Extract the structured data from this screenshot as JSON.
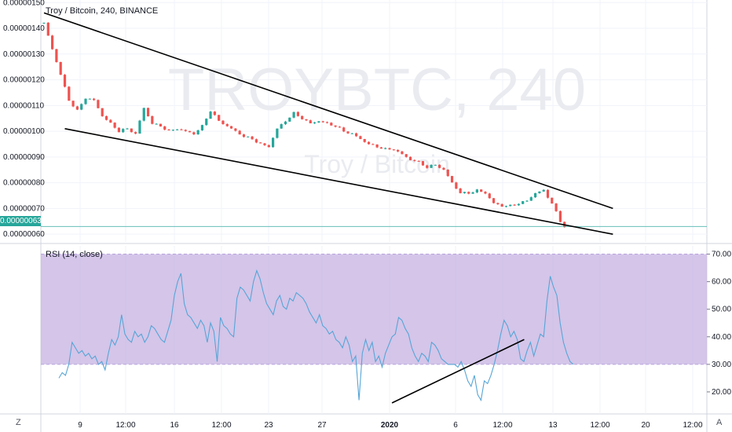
{
  "legend": {
    "main": "Troy / Bitcoin, 240, BINANCE",
    "rsi": "RSI (14, close)"
  },
  "watermark": {
    "symbol": "TROYBTC, 240",
    "name": "Troy / Bitcoin"
  },
  "buttons": {
    "z": "Z",
    "a": "A"
  },
  "colors": {
    "up": "#26a69a",
    "down": "#ef5350",
    "rsi_line": "#56a5d6",
    "rsi_band": "#c9b7e3",
    "last_price": "#26a69a",
    "trendline": "#000000"
  },
  "last_price": "0.00000063",
  "chart_data": [
    {
      "type": "candlestick",
      "title": "Troy / Bitcoin, 240, BINANCE",
      "y_ticks": [
        "0.00000150",
        "0.00000140",
        "0.00000130",
        "0.00000120",
        "0.00000110",
        "0.00000100",
        "0.00000090",
        "0.00000080",
        "0.00000070",
        "0.00000060"
      ],
      "ylim": [
        5.7e-07,
        1.51e-06
      ],
      "x_ticks": [
        "9",
        "12:00",
        "16",
        "12:00",
        "23",
        "27",
        "2020",
        "6",
        "12:00",
        "13",
        "12:00",
        "20",
        "12:00"
      ],
      "last_price": 6.3e-07,
      "trendlines": [
        {
          "name": "upper",
          "start": [
            0,
            1.46e-06
          ],
          "end": [
            114,
            7e-07
          ]
        },
        {
          "name": "lower",
          "start": [
            5,
            1.01e-06
          ],
          "end": [
            114,
            6e-07
          ]
        }
      ],
      "close_path": [
        [
          0,
          1.42e-06
        ],
        [
          2,
          1.32e-06
        ],
        [
          4,
          1.22e-06
        ],
        [
          6,
          1.12e-06
        ],
        [
          8,
          1.08e-06
        ],
        [
          10,
          1.13e-06
        ],
        [
          12,
          1.12e-06
        ],
        [
          14,
          1.06e-06
        ],
        [
          16,
          1.03e-06
        ],
        [
          18,
          1e-06
        ],
        [
          20,
          1.01e-06
        ],
        [
          22,
          9.9e-07
        ],
        [
          24,
          1.09e-06
        ],
        [
          26,
          1.03e-06
        ],
        [
          28,
          1.02e-06
        ],
        [
          30,
          1e-06
        ],
        [
          32,
          1.01e-06
        ],
        [
          34,
          1e-06
        ],
        [
          36,
          9.9e-07
        ],
        [
          38,
          1.02e-06
        ],
        [
          40,
          1.08e-06
        ],
        [
          42,
          1.04e-06
        ],
        [
          44,
          1.02e-06
        ],
        [
          46,
          1e-06
        ],
        [
          48,
          9.8e-07
        ],
        [
          50,
          9.7e-07
        ],
        [
          52,
          9.5e-07
        ],
        [
          54,
          9.4e-07
        ],
        [
          56,
          1.01e-06
        ],
        [
          58,
          1.04e-06
        ],
        [
          60,
          1.07e-06
        ],
        [
          62,
          1.05e-06
        ],
        [
          64,
          1.03e-06
        ],
        [
          66,
          1.04e-06
        ],
        [
          68,
          1.03e-06
        ],
        [
          70,
          1.02e-06
        ],
        [
          72,
          1e-06
        ],
        [
          74,
          9.9e-07
        ],
        [
          76,
          9.7e-07
        ],
        [
          78,
          9.5e-07
        ],
        [
          80,
          9.4e-07
        ],
        [
          82,
          9.3e-07
        ],
        [
          84,
          9.3e-07
        ],
        [
          86,
          9.1e-07
        ],
        [
          88,
          8.9e-07
        ],
        [
          90,
          8.8e-07
        ],
        [
          92,
          8.6e-07
        ],
        [
          94,
          8.7e-07
        ],
        [
          96,
          8.5e-07
        ],
        [
          98,
          8e-07
        ],
        [
          100,
          7.6e-07
        ],
        [
          102,
          7.6e-07
        ],
        [
          104,
          7.7e-07
        ],
        [
          106,
          7.6e-07
        ],
        [
          108,
          7.2e-07
        ],
        [
          110,
          7.1e-07
        ],
        [
          112,
          7.1e-07
        ],
        [
          114,
          7.2e-07
        ],
        [
          116,
          7.3e-07
        ],
        [
          118,
          7.6e-07
        ],
        [
          120,
          7.7e-07
        ],
        [
          122,
          7.2e-07
        ],
        [
          124,
          6.5e-07
        ],
        [
          125,
          6.3e-07
        ]
      ]
    },
    {
      "type": "line",
      "title": "RSI (14, close)",
      "y_ticks": [
        "70.00",
        "60.00",
        "50.00",
        "40.00",
        "30.00",
        "20.00"
      ],
      "ylim": [
        12,
        73
      ],
      "band": [
        30,
        70
      ],
      "x_ticks": [
        "9",
        "12:00",
        "16",
        "12:00",
        "23",
        "27",
        "2020",
        "6",
        "12:00",
        "13",
        "12:00",
        "20",
        "12:00"
      ],
      "trendline": {
        "start": [
          101,
          16
        ],
        "end": [
          128,
          39
        ]
      },
      "values": [
        25,
        27,
        26,
        30,
        38,
        36,
        34,
        35,
        33,
        34,
        32,
        33,
        30,
        31,
        28,
        34,
        39,
        37,
        40,
        48,
        41,
        39,
        38,
        42,
        40,
        41,
        38,
        40,
        44,
        43,
        41,
        39,
        38,
        42,
        46,
        55,
        60,
        63,
        52,
        48,
        47,
        45,
        43,
        46,
        44,
        38,
        45,
        42,
        31,
        47,
        44,
        43,
        41,
        40,
        54,
        58,
        57,
        55,
        53,
        60,
        64,
        61,
        56,
        52,
        50,
        48,
        53,
        55,
        51,
        50,
        54,
        53,
        56,
        55,
        54,
        52,
        49,
        47,
        45,
        48,
        44,
        43,
        41,
        42,
        39,
        38,
        36,
        40,
        37,
        31,
        33,
        17,
        34,
        39,
        35,
        38,
        31,
        33,
        29,
        34,
        37,
        40,
        41,
        47,
        46,
        43,
        41,
        36,
        33,
        31,
        34,
        33,
        31,
        38,
        37,
        35,
        32,
        31,
        30,
        30,
        30,
        29,
        31,
        28,
        24,
        22,
        26,
        19,
        17,
        24,
        23,
        26,
        30,
        35,
        41,
        46,
        44,
        40,
        42,
        39,
        32,
        31,
        35,
        38,
        33,
        37,
        41,
        40,
        53,
        62,
        58,
        55,
        45,
        38,
        34,
        31,
        30
      ]
    }
  ]
}
